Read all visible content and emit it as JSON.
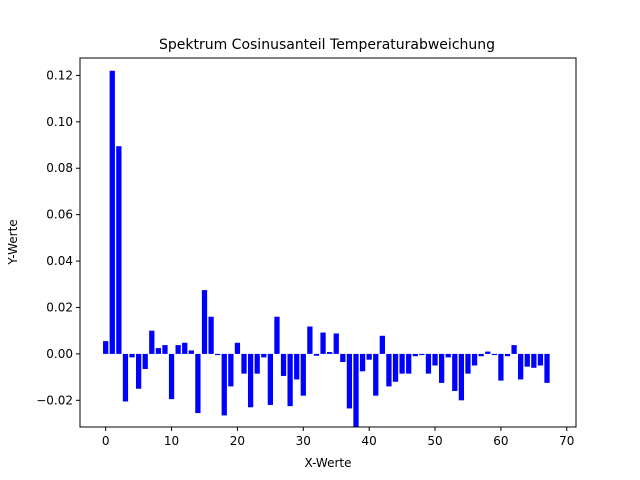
{
  "chart_data": {
    "type": "bar",
    "title": "Spektrum Cosinusanteil Temperaturabweichung",
    "xlabel": "X-Werte",
    "ylabel": "Y-Werte",
    "xlim": [
      -3.9,
      71.4
    ],
    "ylim": [
      -0.0315,
      0.1275
    ],
    "x_ticks": [
      0,
      10,
      20,
      30,
      40,
      50,
      60,
      70
    ],
    "x_tick_labels": [
      "0",
      "10",
      "20",
      "30",
      "40",
      "50",
      "60",
      "70"
    ],
    "y_ticks": [
      -0.02,
      0.0,
      0.02,
      0.04,
      0.06,
      0.08,
      0.1,
      0.12
    ],
    "y_tick_labels": [
      "−0.02",
      "0.00",
      "0.02",
      "0.04",
      "0.06",
      "0.08",
      "0.10",
      "0.12"
    ],
    "bar_color": "#0000ff",
    "grid": false,
    "x": [
      0,
      1,
      2,
      3,
      4,
      5,
      6,
      7,
      8,
      9,
      10,
      11,
      12,
      13,
      14,
      15,
      16,
      17,
      18,
      19,
      20,
      21,
      22,
      23,
      24,
      25,
      26,
      27,
      28,
      29,
      30,
      31,
      32,
      33,
      34,
      35,
      36,
      37,
      38,
      39,
      40,
      41,
      42,
      43,
      44,
      45,
      46,
      47,
      48,
      49,
      50,
      51,
      52,
      53,
      54,
      55,
      56,
      57,
      58,
      59,
      60,
      61,
      62,
      63,
      64,
      65,
      66,
      67
    ],
    "values": [
      0.0055,
      0.122,
      0.0895,
      -0.0205,
      -0.0015,
      -0.015,
      -0.0065,
      0.01,
      0.0025,
      0.0038,
      -0.0195,
      0.0038,
      0.0048,
      0.0015,
      -0.0255,
      0.0275,
      0.016,
      -0.0005,
      -0.0265,
      -0.014,
      0.0048,
      -0.0085,
      -0.023,
      -0.0085,
      -0.0015,
      -0.022,
      0.016,
      -0.0095,
      -0.0225,
      -0.011,
      -0.018,
      0.0118,
      -0.0008,
      0.0092,
      0.0008,
      0.0088,
      -0.0035,
      -0.0235,
      -0.0315,
      -0.0075,
      -0.0025,
      -0.018,
      0.0078,
      -0.014,
      -0.012,
      -0.0085,
      -0.0085,
      -0.001,
      -0.0005,
      -0.0085,
      -0.005,
      -0.0125,
      -0.0015,
      -0.016,
      -0.02,
      -0.0085,
      -0.005,
      -0.001,
      0.001,
      -0.0005,
      -0.0115,
      -0.001,
      0.0038,
      -0.011,
      -0.0055,
      -0.006,
      -0.005,
      -0.0125
    ]
  }
}
